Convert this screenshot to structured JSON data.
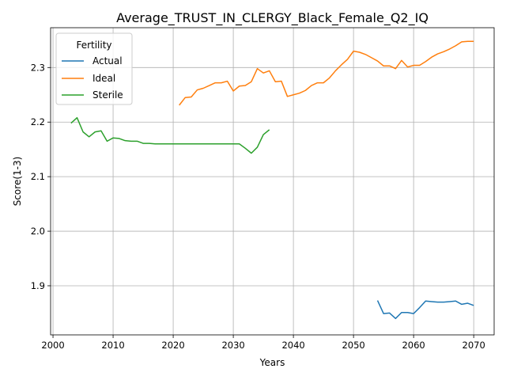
{
  "chart_data": {
    "type": "line",
    "title": "Average_TRUST_IN_CLERGY_Black_Female_Q2_IQ",
    "xlabel": "Years",
    "ylabel": "Score(1-3)",
    "xlim": [
      1999.6,
      2073.4
    ],
    "ylim": [
      1.81,
      2.373
    ],
    "x_ticks": [
      2000,
      2010,
      2020,
      2030,
      2040,
      2050,
      2060,
      2070
    ],
    "y_ticks": [
      1.9,
      2.0,
      2.1,
      2.2,
      2.3
    ],
    "x_tick_labels": [
      "2000",
      "2010",
      "2020",
      "2030",
      "2040",
      "2050",
      "2060",
      "2070"
    ],
    "y_tick_labels": [
      "1.9",
      "2.0",
      "2.1",
      "2.2",
      "2.3"
    ],
    "grid": true,
    "legend": {
      "title": "Fertility",
      "position": "upper-left"
    },
    "series": [
      {
        "name": "Actual",
        "color": "#1f77b4",
        "x": [
          2054,
          2055,
          2056,
          2057,
          2058,
          2059,
          2060,
          2061,
          2062,
          2063,
          2064,
          2065,
          2066,
          2067,
          2068,
          2069,
          2070
        ],
        "y": [
          1.873,
          1.849,
          1.85,
          1.84,
          1.851,
          1.851,
          1.849,
          1.86,
          1.872,
          1.871,
          1.87,
          1.87,
          1.871,
          1.872,
          1.866,
          1.868,
          1.864
        ]
      },
      {
        "name": "Ideal",
        "color": "#ff7f0e",
        "x": [
          2021,
          2022,
          2023,
          2024,
          2025,
          2026,
          2027,
          2028,
          2029,
          2030,
          2031,
          2032,
          2033,
          2034,
          2035,
          2036,
          2037,
          2038,
          2039,
          2040,
          2041,
          2042,
          2043,
          2044,
          2045,
          2046,
          2047,
          2048,
          2049,
          2050,
          2051,
          2052,
          2053,
          2054,
          2055,
          2056,
          2057,
          2058,
          2059,
          2060,
          2061,
          2062,
          2063,
          2064,
          2065,
          2066,
          2067,
          2068,
          2069,
          2070
        ],
        "y": [
          2.231,
          2.245,
          2.246,
          2.259,
          2.262,
          2.267,
          2.272,
          2.272,
          2.275,
          2.257,
          2.266,
          2.267,
          2.274,
          2.298,
          2.29,
          2.294,
          2.274,
          2.275,
          2.247,
          2.25,
          2.253,
          2.258,
          2.267,
          2.272,
          2.272,
          2.281,
          2.294,
          2.305,
          2.315,
          2.33,
          2.328,
          2.324,
          2.318,
          2.312,
          2.303,
          2.303,
          2.298,
          2.313,
          2.301,
          2.304,
          2.304,
          2.311,
          2.319,
          2.325,
          2.329,
          2.334,
          2.34,
          2.347,
          2.348,
          2.348
        ]
      },
      {
        "name": "Sterile",
        "color": "#2ca02c",
        "x": [
          2003,
          2004,
          2005,
          2006,
          2007,
          2008,
          2009,
          2010,
          2011,
          2012,
          2013,
          2014,
          2015,
          2016,
          2017,
          2018,
          2019,
          2020,
          2021,
          2022,
          2023,
          2024,
          2025,
          2026,
          2027,
          2028,
          2029,
          2030,
          2031,
          2032,
          2033,
          2034,
          2035,
          2036
        ],
        "y": [
          2.198,
          2.208,
          2.182,
          2.173,
          2.182,
          2.184,
          2.165,
          2.171,
          2.17,
          2.166,
          2.165,
          2.165,
          2.161,
          2.161,
          2.16,
          2.16,
          2.16,
          2.16,
          2.16,
          2.16,
          2.16,
          2.16,
          2.16,
          2.16,
          2.16,
          2.16,
          2.16,
          2.16,
          2.16,
          2.152,
          2.143,
          2.154,
          2.177,
          2.186
        ]
      }
    ]
  }
}
